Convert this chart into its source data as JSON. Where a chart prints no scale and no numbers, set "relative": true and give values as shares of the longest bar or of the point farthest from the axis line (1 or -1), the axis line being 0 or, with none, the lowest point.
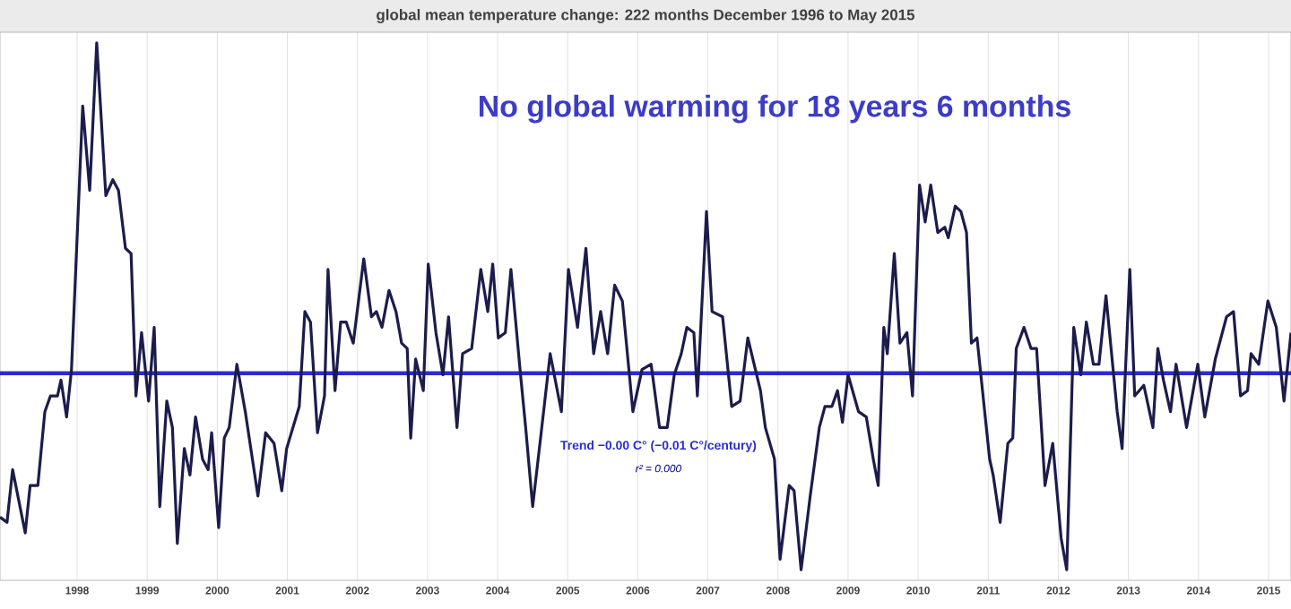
{
  "chart_data": {
    "type": "line",
    "title": "global mean temperature change: 222 months December 1996 to May 2015",
    "subtitle": "No global warming for 18 years 6 months",
    "relative": true,
    "grid": "x",
    "x": [
      1996.9,
      1997.0,
      1997.08,
      1997.26,
      1997.33,
      1997.44,
      1997.54,
      1997.62,
      1997.72,
      1997.77,
      1997.85,
      1997.92,
      1998.08,
      1998.18,
      1998.28,
      1998.41,
      1998.51,
      1998.59,
      1998.69,
      1998.77,
      1998.84,
      1998.92,
      1999.02,
      1999.1,
      1999.18,
      1999.28,
      1999.36,
      1999.43,
      1999.53,
      1999.61,
      1999.69,
      1999.79,
      1999.87,
      1999.92,
      2000.02,
      2000.1,
      2000.17,
      2000.28,
      2000.4,
      2000.58,
      2000.69,
      2000.81,
      2000.92,
      2000.99,
      2001.17,
      2001.25,
      2001.33,
      2001.43,
      2001.53,
      2001.58,
      2001.68,
      2001.76,
      2001.84,
      2001.94,
      2002.09,
      2002.2,
      2002.27,
      2002.35,
      2002.45,
      2002.55,
      2002.63,
      2002.71,
      2002.76,
      2002.83,
      2002.94,
      2003.01,
      2003.12,
      2003.22,
      2003.3,
      2003.42,
      2003.5,
      2003.63,
      2003.76,
      2003.86,
      2003.93,
      2004.01,
      2004.11,
      2004.19,
      2004.32,
      2004.4,
      2004.5,
      2004.63,
      2004.75,
      2004.91,
      2005.01,
      2005.14,
      2005.26,
      2005.37,
      2005.47,
      2005.57,
      2005.67,
      2005.78,
      2005.93,
      2006.06,
      2006.19,
      2006.31,
      2006.42,
      2006.52,
      2006.62,
      2006.7,
      2006.8,
      2006.85,
      2006.98,
      2007.06,
      2007.21,
      2007.34,
      2007.46,
      2007.57,
      2007.75,
      2007.82,
      2007.95,
      2008.03,
      2008.16,
      2008.23,
      2008.33,
      2008.46,
      2008.59,
      2008.67,
      2008.77,
      2008.85,
      2008.92,
      2009.0,
      2009.15,
      2009.26,
      2009.36,
      2009.43,
      2009.51,
      2009.56,
      2009.66,
      2009.74,
      2009.84,
      2009.92,
      2010.02,
      2010.1,
      2010.18,
      2010.28,
      2010.38,
      2010.43,
      2010.53,
      2010.61,
      2010.69,
      2010.76,
      2010.84,
      2011.02,
      2011.07,
      2011.17,
      2011.28,
      2011.35,
      2011.4,
      2011.51,
      2011.61,
      2011.69,
      2011.81,
      2011.92,
      2012.04,
      2012.12,
      2012.22,
      2012.32,
      2012.4,
      2012.5,
      2012.58,
      2012.68,
      2012.84,
      2012.91,
      2013.02,
      2013.09,
      2013.22,
      2013.35,
      2013.42,
      2013.5,
      2013.6,
      2013.68,
      2013.83,
      2013.99,
      2014.09,
      2014.24,
      2014.4,
      2014.5,
      2014.6,
      2014.7,
      2014.75,
      2014.86,
      2014.99,
      2015.11,
      2015.22,
      2015.32
    ],
    "series": [
      {
        "color": "#1c1c4c",
        "values": [
          0.1,
          0.09,
          0.19,
          0.07,
          0.16,
          0.16,
          0.3,
          0.33,
          0.33,
          0.36,
          0.29,
          0.38,
          0.88,
          0.72,
          1.0,
          0.71,
          0.74,
          0.72,
          0.61,
          0.6,
          0.33,
          0.45,
          0.32,
          0.46,
          0.12,
          0.32,
          0.27,
          0.05,
          0.23,
          0.18,
          0.29,
          0.21,
          0.19,
          0.26,
          0.08,
          0.25,
          0.27,
          0.39,
          0.3,
          0.14,
          0.26,
          0.24,
          0.15,
          0.23,
          0.31,
          0.49,
          0.47,
          0.26,
          0.33,
          0.57,
          0.34,
          0.47,
          0.47,
          0.43,
          0.59,
          0.48,
          0.49,
          0.46,
          0.53,
          0.49,
          0.43,
          0.42,
          0.25,
          0.4,
          0.34,
          0.58,
          0.45,
          0.37,
          0.48,
          0.27,
          0.41,
          0.42,
          0.57,
          0.49,
          0.58,
          0.44,
          0.45,
          0.57,
          0.38,
          0.27,
          0.12,
          0.27,
          0.41,
          0.3,
          0.57,
          0.46,
          0.61,
          0.41,
          0.49,
          0.41,
          0.54,
          0.51,
          0.3,
          0.38,
          0.39,
          0.27,
          0.27,
          0.37,
          0.41,
          0.46,
          0.45,
          0.33,
          0.68,
          0.49,
          0.48,
          0.31,
          0.32,
          0.44,
          0.34,
          0.27,
          0.21,
          0.02,
          0.16,
          0.15,
          0.0,
          0.14,
          0.27,
          0.31,
          0.31,
          0.34,
          0.28,
          0.37,
          0.3,
          0.29,
          0.21,
          0.16,
          0.46,
          0.41,
          0.6,
          0.43,
          0.45,
          0.33,
          0.73,
          0.66,
          0.73,
          0.64,
          0.65,
          0.63,
          0.69,
          0.68,
          0.64,
          0.43,
          0.44,
          0.21,
          0.18,
          0.09,
          0.24,
          0.25,
          0.42,
          0.46,
          0.42,
          0.42,
          0.16,
          0.24,
          0.06,
          0.0,
          0.46,
          0.37,
          0.47,
          0.39,
          0.39,
          0.52,
          0.3,
          0.23,
          0.57,
          0.33,
          0.35,
          0.27,
          0.42,
          0.36,
          0.3,
          0.39,
          0.27,
          0.39,
          0.29,
          0.4,
          0.48,
          0.49,
          0.33,
          0.34,
          0.41,
          0.39,
          0.51,
          0.46,
          0.32,
          0.45
        ]
      }
    ],
    "xlim": [
      1996.9,
      2015.32
    ],
    "xticks": [
      1998,
      1999,
      2000,
      2001,
      2002,
      2003,
      2004,
      2005,
      2006,
      2007,
      2008,
      2009,
      2010,
      2011,
      2012,
      2013,
      2014,
      2015
    ],
    "ref_lines": [
      {
        "axis": "y",
        "value": 0.373,
        "label": "Trend −0.00 C° (−0.01 C°/century)",
        "color": "#2b2bd6"
      }
    ],
    "annotations": [
      "r² = 0.000"
    ]
  }
}
